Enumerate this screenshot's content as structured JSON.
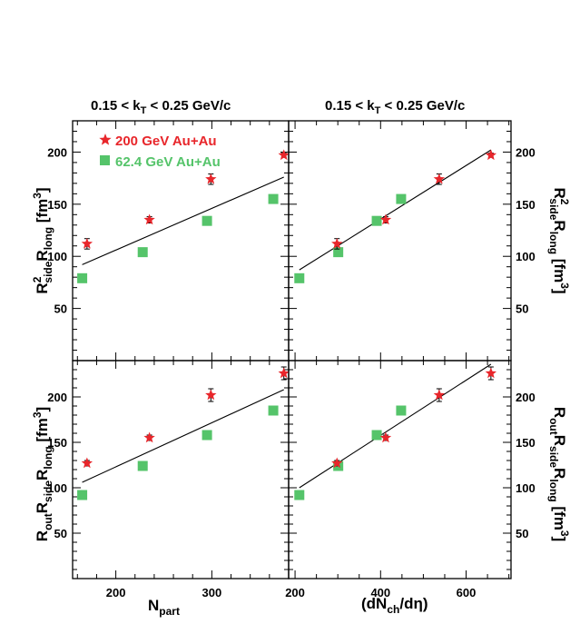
{
  "colors": {
    "red": "#e8262b",
    "green": "#55c46a"
  },
  "panel_titles": {
    "left": "0.15 < kT < 0.25 GeV/c",
    "right": "0.15 < kT < 0.25 GeV/c"
  },
  "axis_labels": {
    "x_left": "Npart",
    "x_right": "(dNch/dη)",
    "y_top_left": "R²sideRlong [fm³]",
    "y_bottom_left": "RoutRsideRlong [fm³]",
    "y_top_right": "R²sideRlong [fm³]",
    "y_bottom_right": "RoutRsideRlong [fm³]"
  },
  "legend": [
    {
      "label": "200 GeV Au+Au",
      "marker": "star",
      "color": "#e8262b"
    },
    {
      "label": "62.4 GeV Au+Au",
      "marker": "square",
      "color": "#55c46a"
    }
  ],
  "chart_data": [
    {
      "type": "scatter",
      "panel": "top-left",
      "title": "0.15 < kT < 0.25 GeV/c",
      "xlabel": "Npart",
      "ylabel": "R²sideRlong [fm³]",
      "xlim": [
        155,
        380
      ],
      "ylim": [
        0,
        230
      ],
      "xticks": [
        200,
        300
      ],
      "yticks": [
        50,
        100,
        150,
        200
      ],
      "series": [
        {
          "name": "200 GeV Au+Au",
          "x": [
            170,
            235,
            299,
            375
          ],
          "y": [
            112,
            135,
            174,
            197
          ],
          "err": [
            5,
            3,
            5,
            2
          ]
        },
        {
          "name": "62.4 GeV Au+Au",
          "x": [
            165,
            228,
            295,
            364
          ],
          "y": [
            79,
            104,
            134,
            155
          ]
        }
      ],
      "fit": {
        "x": [
          165,
          375
        ],
        "y": [
          92,
          176
        ]
      }
    },
    {
      "type": "scatter",
      "panel": "top-right",
      "title": "0.15 < kT < 0.25 GeV/c",
      "xlabel": "(dNch/dη)",
      "ylabel": "R²sideRlong [fm³]",
      "xlim": [
        185,
        705
      ],
      "ylim": [
        0,
        230
      ],
      "xticks": [
        200,
        400,
        600
      ],
      "yticks": [
        50,
        100,
        150,
        200
      ],
      "series": [
        {
          "name": "200 GeV Au+Au",
          "x": [
            298,
            412,
            537,
            658
          ],
          "y": [
            112,
            135,
            174,
            197
          ],
          "err": [
            5,
            3,
            5,
            2
          ]
        },
        {
          "name": "62.4 GeV Au+Au",
          "x": [
            210,
            301,
            391,
            448
          ],
          "y": [
            79,
            104,
            134,
            155
          ]
        }
      ],
      "fit": {
        "x": [
          210,
          658
        ],
        "y": [
          87,
          202
        ]
      }
    },
    {
      "type": "scatter",
      "panel": "bottom-left",
      "xlabel": "Npart",
      "ylabel": "RoutRsideRlong [fm³]",
      "xlim": [
        155,
        380
      ],
      "ylim": [
        0,
        240
      ],
      "xticks": [
        200,
        300
      ],
      "yticks": [
        50,
        100,
        150,
        200
      ],
      "series": [
        {
          "name": "200 GeV Au+Au",
          "x": [
            170,
            235,
            299,
            375
          ],
          "y": [
            127,
            155,
            202,
            226
          ],
          "err": [
            3,
            3,
            7,
            7
          ]
        },
        {
          "name": "62.4 GeV Au+Au",
          "x": [
            165,
            228,
            295,
            364
          ],
          "y": [
            92,
            124,
            158,
            185
          ]
        }
      ],
      "fit": {
        "x": [
          165,
          375
        ],
        "y": [
          106,
          208
        ]
      }
    },
    {
      "type": "scatter",
      "panel": "bottom-right",
      "xlabel": "(dNch/dη)",
      "ylabel": "RoutRsideRlong [fm³]",
      "xlim": [
        185,
        705
      ],
      "ylim": [
        0,
        240
      ],
      "xticks": [
        200,
        400,
        600
      ],
      "yticks": [
        50,
        100,
        150,
        200
      ],
      "series": [
        {
          "name": "200 GeV Au+Au",
          "x": [
            298,
            412,
            537,
            658
          ],
          "y": [
            127,
            155,
            202,
            226
          ],
          "err": [
            3,
            3,
            7,
            7
          ]
        },
        {
          "name": "62.4 GeV Au+Au",
          "x": [
            210,
            301,
            391,
            448
          ],
          "y": [
            92,
            124,
            158,
            185
          ]
        }
      ],
      "fit": {
        "x": [
          210,
          658
        ],
        "y": [
          100,
          236
        ]
      }
    }
  ]
}
